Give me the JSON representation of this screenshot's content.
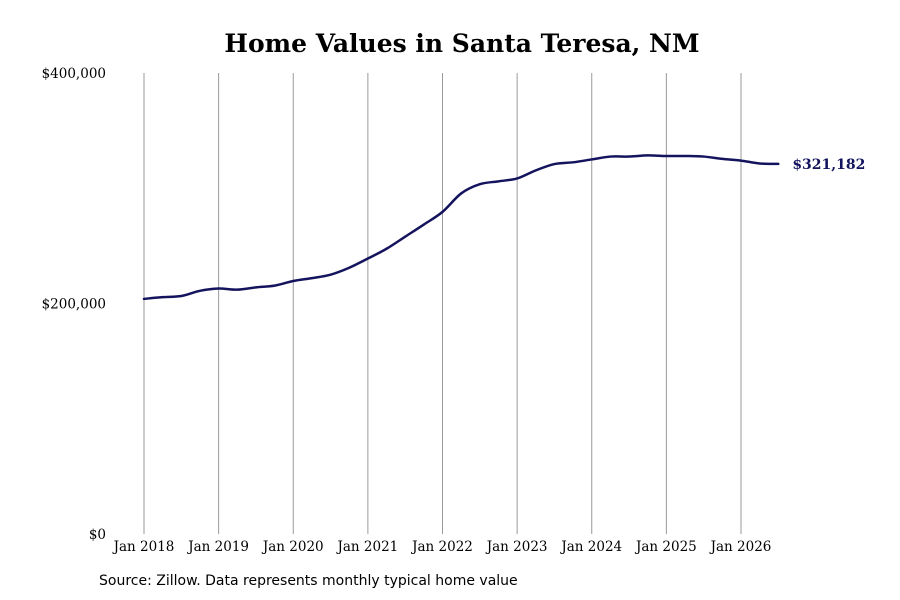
{
  "chart_data": {
    "type": "line",
    "title": "Home Values in Santa Teresa, NM",
    "xlabel": "",
    "ylabel": "",
    "ylim": [
      0,
      400000
    ],
    "xlim": [
      "2018-01",
      "2026-08"
    ],
    "yticks": [
      {
        "value": 0,
        "label": "$0"
      },
      {
        "value": 200000,
        "label": "$200,000"
      },
      {
        "value": 400000,
        "label": "$400,000"
      }
    ],
    "xticks": [
      {
        "value": "2018-01",
        "label": "Jan 2018"
      },
      {
        "value": "2019-01",
        "label": "Jan 2019"
      },
      {
        "value": "2020-01",
        "label": "Jan 2020"
      },
      {
        "value": "2021-01",
        "label": "Jan 2021"
      },
      {
        "value": "2022-01",
        "label": "Jan 2022"
      },
      {
        "value": "2023-01",
        "label": "Jan 2023"
      },
      {
        "value": "2024-01",
        "label": "Jan 2024"
      },
      {
        "value": "2025-01",
        "label": "Jan 2025"
      },
      {
        "value": "2026-01",
        "label": "Jan 2026"
      }
    ],
    "grid": {
      "x": true,
      "y": false
    },
    "legend": "none",
    "series": [
      {
        "color": "#14145e",
        "end_label": "$321,182",
        "x": [
          "2018-01",
          "2018-04",
          "2018-07",
          "2018-10",
          "2019-01",
          "2019-04",
          "2019-07",
          "2019-10",
          "2020-01",
          "2020-04",
          "2020-07",
          "2020-10",
          "2021-01",
          "2021-04",
          "2021-07",
          "2021-10",
          "2022-01",
          "2022-04",
          "2022-07",
          "2022-10",
          "2023-01",
          "2023-04",
          "2023-07",
          "2023-10",
          "2024-01",
          "2024-04",
          "2024-07",
          "2024-10",
          "2025-01",
          "2025-04",
          "2025-07",
          "2025-10",
          "2026-01",
          "2026-04",
          "2026-07"
        ],
        "y": [
          204000,
          205500,
          206500,
          211000,
          213000,
          212000,
          214000,
          215500,
          219500,
          222000,
          225000,
          231000,
          239000,
          247500,
          258000,
          268500,
          279500,
          295500,
          303500,
          306000,
          308500,
          315500,
          321000,
          322500,
          325000,
          327500,
          327500,
          328500,
          328000,
          328000,
          327500,
          325500,
          324000,
          321500,
          321182
        ]
      }
    ]
  },
  "source": "Source: Zillow. Data represents monthly typical home value"
}
